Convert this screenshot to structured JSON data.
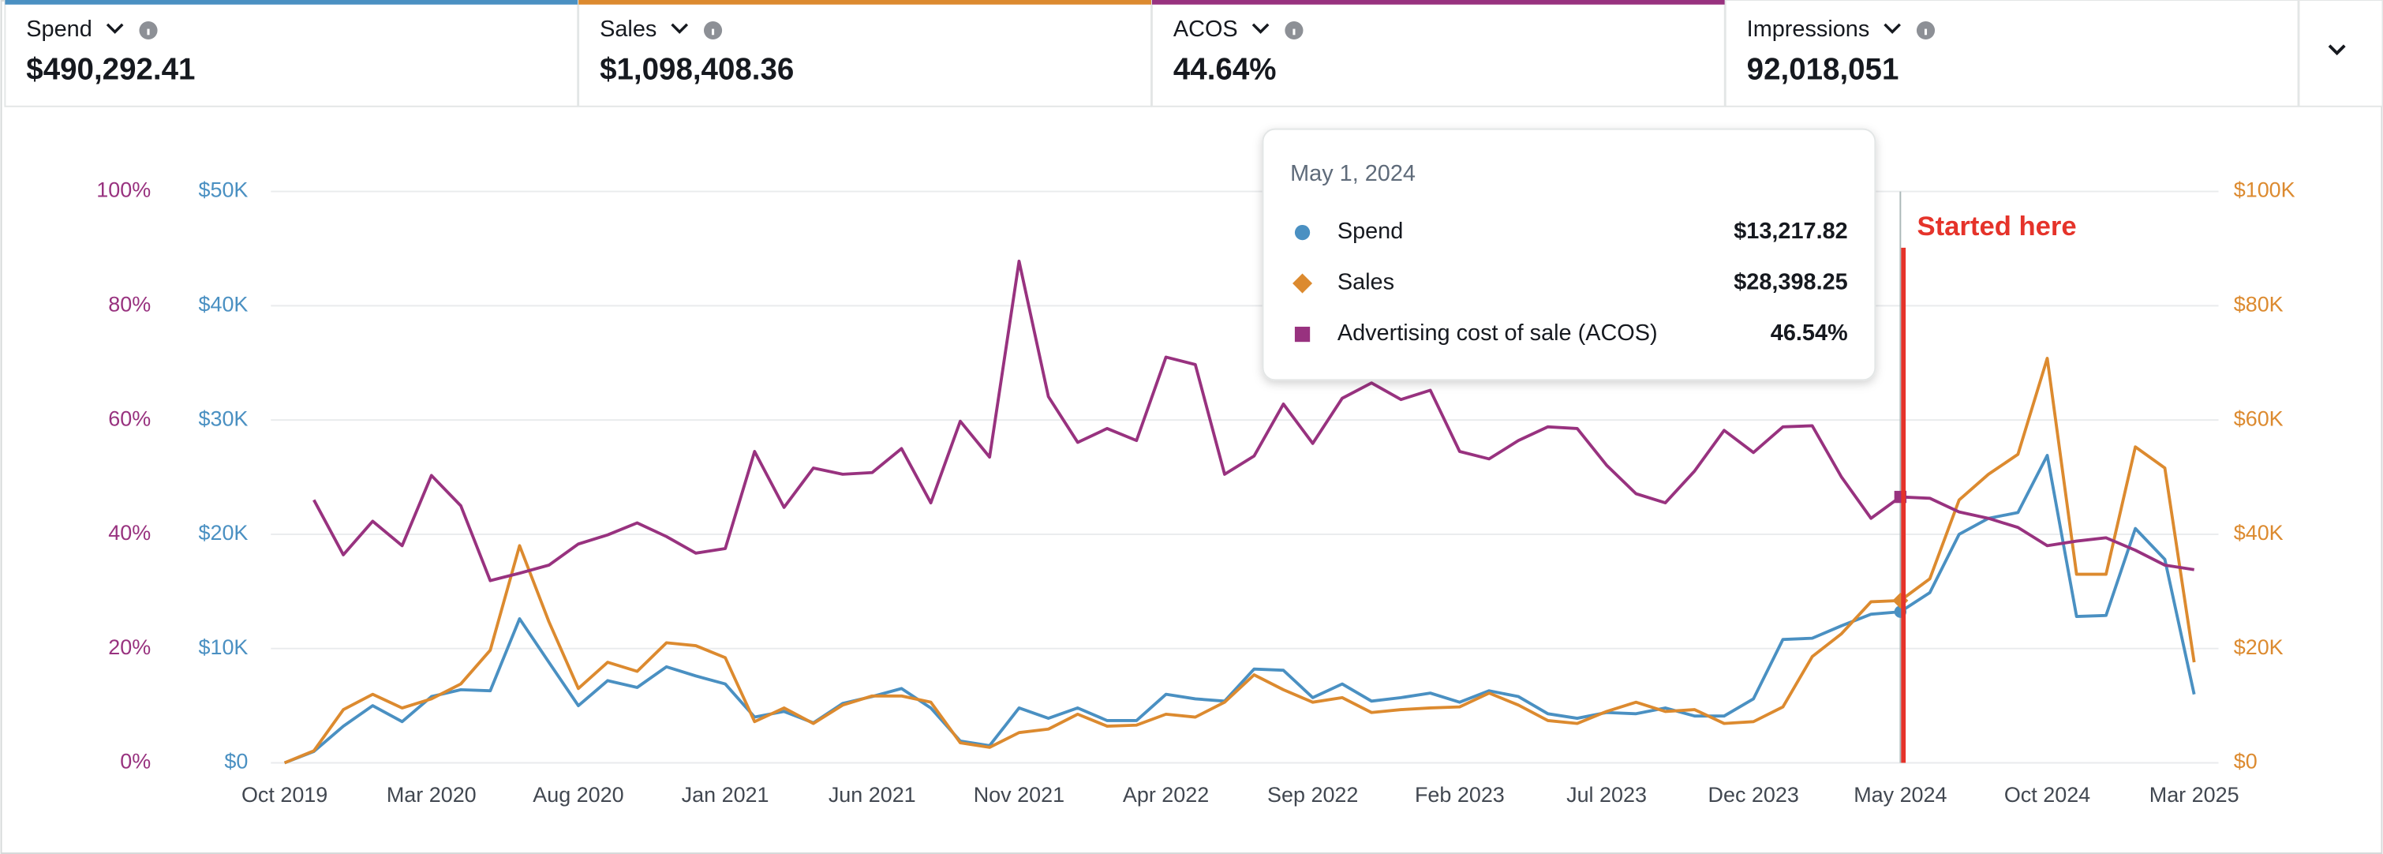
{
  "metrics": [
    {
      "label": "Spend",
      "value": "$490,292.41",
      "color": "#4a90c2"
    },
    {
      "label": "Sales",
      "value": "$1,098,408.36",
      "color": "#dc8a2f"
    },
    {
      "label": "ACOS",
      "value": "44.64%",
      "color": "#98327f"
    },
    {
      "label": "Impressions",
      "value": "92,018,051"
    }
  ],
  "chart_data": {
    "type": "line",
    "categories": [
      "Oct 2019",
      null,
      null,
      null,
      null,
      "Mar 2020",
      null,
      null,
      null,
      null,
      "Aug 2020",
      null,
      null,
      null,
      null,
      "Jan 2021",
      null,
      null,
      null,
      null,
      "Jun 2021",
      null,
      null,
      null,
      null,
      "Nov 2021",
      null,
      null,
      null,
      null,
      "Apr 2022",
      null,
      null,
      null,
      null,
      "Sep 2022",
      null,
      null,
      null,
      null,
      "Feb 2023",
      null,
      null,
      null,
      null,
      "Jul 2023",
      null,
      null,
      null,
      null,
      "Dec 2023",
      null,
      null,
      null,
      null,
      "May 2024",
      null,
      null,
      null,
      null,
      "Oct 2024",
      null,
      null,
      null,
      null,
      "Mar 2025"
    ],
    "series": [
      {
        "name": "Spend",
        "color": "#4a90c2",
        "axis": "y",
        "marker": "circle",
        "values": [
          0,
          1000,
          3200,
          5000,
          3600,
          5800,
          6400,
          6300,
          12600,
          8800,
          5000,
          7200,
          6600,
          8400,
          7600,
          6900,
          4000,
          4500,
          3500,
          5200,
          5800,
          6500,
          4800,
          1900,
          1500,
          4800,
          3900,
          4800,
          3700,
          3700,
          6000,
          5600,
          5400,
          8200,
          8100,
          5700,
          6900,
          5400,
          5700,
          6100,
          5300,
          6300,
          5800,
          4300,
          3900,
          4400,
          4300,
          4800,
          4100,
          4100,
          5600,
          10800,
          10900,
          12000,
          13000,
          13217.82,
          14900,
          20000,
          21400,
          21900,
          26900,
          12800,
          12900,
          20500,
          17800,
          6000
        ]
      },
      {
        "name": "Sales",
        "color": "#dc8a2f",
        "axis": "y2",
        "marker": "diamond",
        "values": [
          0,
          2100,
          9300,
          12000,
          9600,
          11200,
          13800,
          19700,
          38000,
          24700,
          13000,
          17600,
          16000,
          21000,
          20500,
          18400,
          7200,
          9600,
          6900,
          10100,
          11700,
          11700,
          10600,
          3500,
          2700,
          5300,
          5900,
          8500,
          6400,
          6600,
          8500,
          8000,
          10600,
          15400,
          12800,
          10600,
          11400,
          8800,
          9300,
          9600,
          9800,
          12200,
          10100,
          7400,
          6900,
          9000,
          10600,
          9000,
          9300,
          6900,
          7200,
          9800,
          18600,
          22600,
          28200,
          28398.25,
          32200,
          46000,
          50500,
          54000,
          70800,
          33000,
          33000,
          55300,
          51600,
          17600
        ]
      },
      {
        "name": "Advertising cost of sale (ACOS)",
        "color": "#98327f",
        "axis": "y3",
        "marker": "square",
        "values": [
          null,
          46,
          36.4,
          42.3,
          38,
          50.3,
          45,
          31.9,
          33.2,
          34.6,
          38.3,
          39.9,
          42,
          39.6,
          36.7,
          37.5,
          54.5,
          44.7,
          51.6,
          50.5,
          50.8,
          55,
          45.5,
          59.8,
          53.5,
          87.8,
          64.1,
          56.1,
          58.5,
          56.4,
          71,
          69.7,
          50.5,
          53.7,
          62.8,
          55.9,
          63.8,
          66.5,
          63.6,
          65.2,
          54.5,
          53.2,
          56.4,
          58.8,
          58.5,
          52.1,
          47.1,
          45.5,
          51.1,
          58.2,
          54.3,
          58.8,
          59,
          50,
          42.8,
          46.54,
          46.3,
          43.9,
          42.8,
          41.2,
          38,
          38.8,
          39.4,
          37.2,
          34.6,
          33.8
        ]
      }
    ],
    "ylim": [
      0,
      50000
    ],
    "yticks": [
      {
        "value": 0,
        "label": "$0"
      },
      {
        "value": 10000,
        "label": "$10K"
      },
      {
        "value": 20000,
        "label": "$20K"
      },
      {
        "value": 30000,
        "label": "$30K"
      },
      {
        "value": 40000,
        "label": "$40K"
      },
      {
        "value": 50000,
        "label": "$50K"
      }
    ],
    "y2lim": [
      0,
      100000
    ],
    "y2ticks": [
      {
        "value": 0,
        "label": "$0"
      },
      {
        "value": 20000,
        "label": "$20K"
      },
      {
        "value": 40000,
        "label": "$40K"
      },
      {
        "value": 60000,
        "label": "$60K"
      },
      {
        "value": 80000,
        "label": "$80K"
      },
      {
        "value": 100000,
        "label": "$100K"
      }
    ],
    "y3lim": [
      0,
      100
    ],
    "y3ticks": [
      {
        "value": 0,
        "label": "0%"
      },
      {
        "value": 20,
        "label": "20%"
      },
      {
        "value": 40,
        "label": "40%"
      },
      {
        "value": 60,
        "label": "60%"
      },
      {
        "value": 80,
        "label": "80%"
      },
      {
        "value": 100,
        "label": "100%"
      }
    ],
    "grid": true,
    "tooltip": {
      "title": "May 1, 2024",
      "labels": [
        "$13,217.82",
        "$28,398.25",
        "46.54%"
      ]
    },
    "annotation": {
      "text": "Started here",
      "color": "#e5332a"
    }
  }
}
